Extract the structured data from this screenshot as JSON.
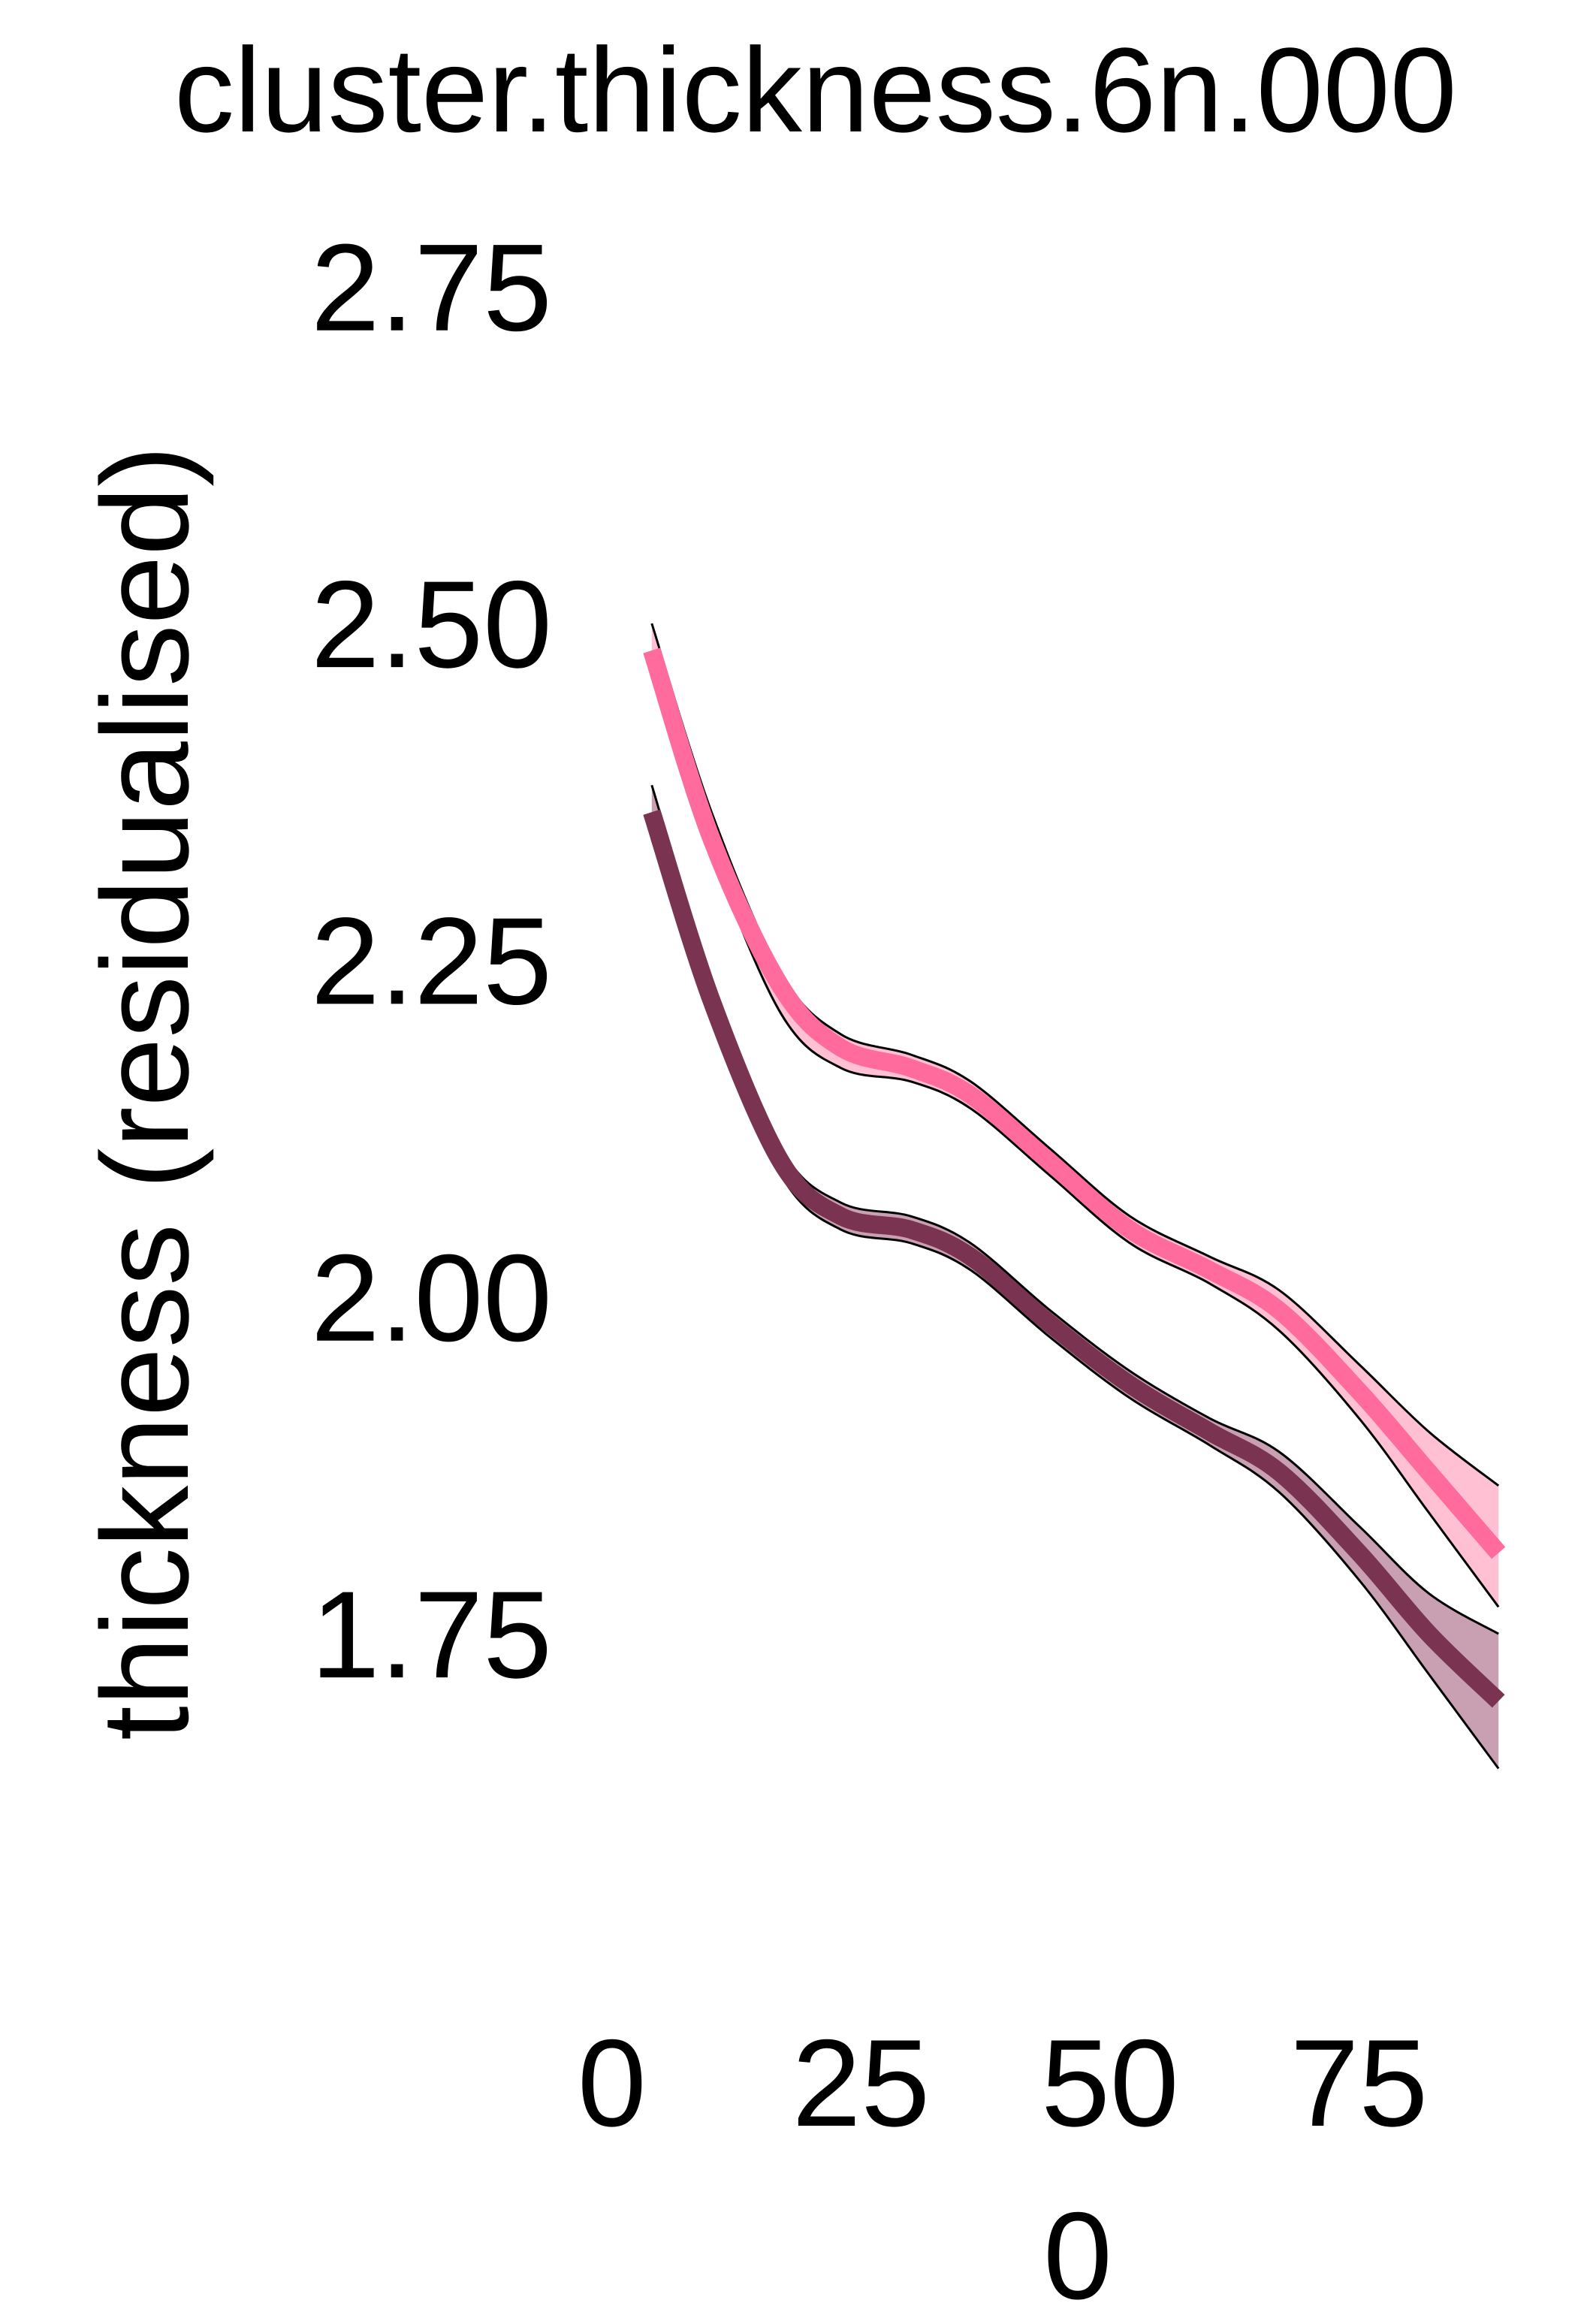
{
  "chart_data": {
    "type": "line",
    "title": "cluster.thickness.6n.000",
    "xlabel": "0",
    "ylabel": "thickness (residualised)",
    "xlim": [
      -3,
      92
    ],
    "ylim": [
      1.58,
      2.79
    ],
    "x_ticks": [
      0,
      25,
      50,
      75
    ],
    "y_ticks": [
      1.75,
      2.0,
      2.25,
      2.5,
      2.75
    ],
    "x_tick_labels": [
      "0",
      "25",
      "50",
      "75"
    ],
    "y_tick_labels": [
      "1.75",
      "2.00",
      "2.25",
      "2.50",
      "2.75"
    ],
    "grid": false,
    "legend": "none",
    "series": [
      {
        "color": "#ff6b9d",
        "band_color": "#ffc0d4",
        "points": [
          {
            "x": 4,
            "y": 2.48,
            "lo": 2.46,
            "hi": 2.5
          },
          {
            "x": 10,
            "y": 2.34,
            "lo": 2.33,
            "hi": 2.36
          },
          {
            "x": 17,
            "y": 2.23,
            "lo": 2.21,
            "hi": 2.24
          },
          {
            "x": 23,
            "y": 2.185,
            "lo": 2.17,
            "hi": 2.195
          },
          {
            "x": 30,
            "y": 2.17,
            "lo": 2.16,
            "hi": 2.18
          },
          {
            "x": 36,
            "y": 2.15,
            "lo": 2.14,
            "hi": 2.16
          },
          {
            "x": 44,
            "y": 2.1,
            "lo": 2.09,
            "hi": 2.11
          },
          {
            "x": 52,
            "y": 2.05,
            "lo": 2.04,
            "hi": 2.06
          },
          {
            "x": 60,
            "y": 2.02,
            "lo": 2.01,
            "hi": 2.03
          },
          {
            "x": 67,
            "y": 1.99,
            "lo": 1.975,
            "hi": 2.005
          },
          {
            "x": 75,
            "y": 1.93,
            "lo": 1.91,
            "hi": 1.95
          },
          {
            "x": 82,
            "y": 1.87,
            "lo": 1.84,
            "hi": 1.9
          },
          {
            "x": 89,
            "y": 1.81,
            "lo": 1.77,
            "hi": 1.86
          }
        ]
      },
      {
        "color": "#7a3350",
        "band_color": "#c9a0b1",
        "points": [
          {
            "x": 4,
            "y": 2.36,
            "lo": 2.34,
            "hi": 2.38
          },
          {
            "x": 10,
            "y": 2.22,
            "lo": 2.21,
            "hi": 2.235
          },
          {
            "x": 17,
            "y": 2.1,
            "lo": 2.09,
            "hi": 2.11
          },
          {
            "x": 23,
            "y": 2.06,
            "lo": 2.05,
            "hi": 2.07
          },
          {
            "x": 30,
            "y": 2.05,
            "lo": 2.04,
            "hi": 2.06
          },
          {
            "x": 36,
            "y": 2.03,
            "lo": 2.02,
            "hi": 2.04
          },
          {
            "x": 44,
            "y": 1.98,
            "lo": 1.97,
            "hi": 1.99
          },
          {
            "x": 52,
            "y": 1.935,
            "lo": 1.925,
            "hi": 1.945
          },
          {
            "x": 60,
            "y": 1.9,
            "lo": 1.89,
            "hi": 1.91
          },
          {
            "x": 67,
            "y": 1.87,
            "lo": 1.855,
            "hi": 1.885
          },
          {
            "x": 75,
            "y": 1.81,
            "lo": 1.79,
            "hi": 1.83
          },
          {
            "x": 82,
            "y": 1.75,
            "lo": 1.72,
            "hi": 1.78
          },
          {
            "x": 89,
            "y": 1.7,
            "lo": 1.65,
            "hi": 1.75
          }
        ]
      }
    ]
  }
}
